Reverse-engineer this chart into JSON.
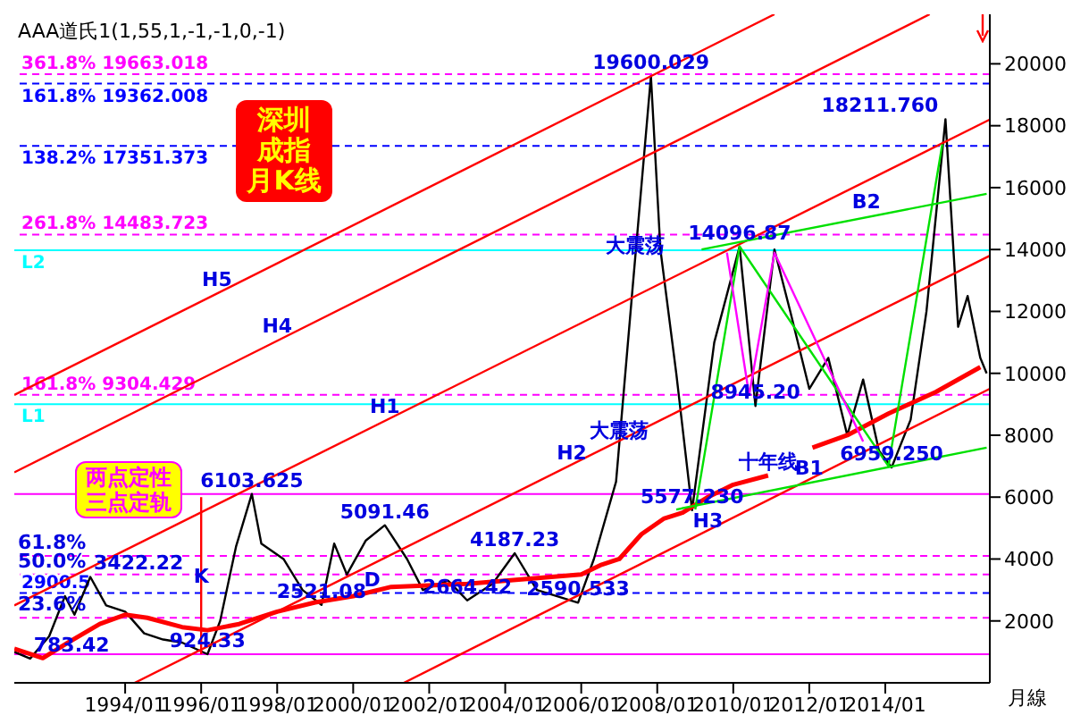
{
  "chart_data": {
    "type": "line",
    "title": "深圳成指月K线",
    "subtitle": "AAA道氏1(1,55,1,-1,-1,0,-1)",
    "xlabel": "月線",
    "xlim": [
      "1991-02",
      "2016-10"
    ],
    "xticks": [
      {
        "value": "1994-01",
        "label": "1994/01"
      },
      {
        "value": "1996-01",
        "label": "1996/01"
      },
      {
        "value": "1998-01",
        "label": "1998/01"
      },
      {
        "value": "2000-01",
        "label": "2000/01"
      },
      {
        "value": "2002-01",
        "label": "2002/01"
      },
      {
        "value": "2004-01",
        "label": "2004/01"
      },
      {
        "value": "2006-01",
        "label": "2006/01"
      },
      {
        "value": "2008-01",
        "label": "2008/01"
      },
      {
        "value": "2010-01",
        "label": "2010/01"
      },
      {
        "value": "2012-01",
        "label": "2012/01"
      },
      {
        "value": "2014-01",
        "label": "2014/01"
      }
    ],
    "ylim": [
      0,
      21600
    ],
    "yticks": [
      2000,
      4000,
      6000,
      8000,
      10000,
      12000,
      14000,
      16000,
      18000,
      20000
    ],
    "grid": false,
    "series": [
      {
        "color": "#000000",
        "x": [
          "1991-02",
          "1991-07",
          "1992-01",
          "1992-06",
          "1992-09",
          "1993-02",
          "1993-07",
          "1994-01",
          "1994-07",
          "1995-01",
          "1995-07",
          "1996-03",
          "1996-07",
          "1996-12",
          "1997-05",
          "1997-08",
          "1998-03",
          "1998-09",
          "1999-03",
          "1999-07",
          "1999-11",
          "2000-05",
          "2000-11",
          "2001-06",
          "2001-11",
          "2002-07",
          "2003-01",
          "2003-09",
          "2004-04",
          "2004-11",
          "2005-12",
          "2006-05",
          "2006-12",
          "2007-05",
          "2007-11",
          "2008-02",
          "2008-07",
          "2008-12",
          "2009-07",
          "2010-03",
          "2010-08",
          "2011-02",
          "2011-07",
          "2012-01",
          "2012-07",
          "2013-01",
          "2013-06",
          "2013-11",
          "2014-03",
          "2014-09",
          "2015-02",
          "2015-08",
          "2015-12",
          "2016-03",
          "2016-07",
          "2016-09"
        ],
        "values": [
          1000,
          783.42,
          1500,
          2800,
          2200,
          3422.22,
          2500,
          2300,
          1600,
          1400,
          1300,
          924.33,
          2000,
          4400,
          6103.625,
          4500,
          4000,
          3000,
          2521.08,
          4500,
          3500,
          4600,
          5091.46,
          4000,
          3000,
          3300,
          2664.42,
          3200,
          4187.23,
          3000,
          2590.533,
          4000,
          6500,
          12500,
          19600.029,
          14000,
          10000,
          5577.23,
          11000,
          14096.87,
          8945.2,
          14000,
          12000,
          9500,
          10500,
          8000,
          9800,
          7500,
          6959.25,
          8500,
          12000,
          18211.76,
          11500,
          12500,
          10500,
          10000
        ]
      },
      {
        "color": "#ff0000",
        "x": [
          "1991-02",
          "1991-11",
          "1992-07",
          "1993-05",
          "1994-01",
          "1994-08",
          "1995-07",
          "1996-03",
          "1997-01",
          "1998-01",
          "1999-01",
          "2000-01",
          "2001-01",
          "2003-01",
          "2005-01",
          "2006-01",
          "2006-07",
          "2007-01",
          "2007-08",
          "2008-03",
          "2008-09",
          "2009-05",
          "2010-01",
          "2010-12",
          "2011-07",
          "2012-02",
          "2013-01",
          "2014-02",
          "2015-05",
          "2016-07"
        ],
        "values": [
          1100,
          800,
          1300,
          1900,
          2200,
          2100,
          1800,
          1700,
          1900,
          2300,
          2600,
          2800,
          3100,
          3200,
          3400,
          3500,
          3800,
          4000,
          4800,
          5300,
          5500,
          6000,
          6400,
          6700,
          null,
          7600,
          8000,
          8700,
          9400,
          10200
        ]
      },
      {
        "color": "#ff0000",
        "x": [
          "1991-02",
          "2011-02"
        ],
        "values": [
          9300,
          21600
        ]
      },
      {
        "color": "#ff0000",
        "x": [
          "1991-02",
          "2015-03"
        ],
        "values": [
          6800,
          21600
        ]
      },
      {
        "color": "#ff0000",
        "x": [
          "1991-02",
          "2016-10"
        ],
        "values": [
          2500,
          18200
        ]
      },
      {
        "color": "#ff0000",
        "x": [
          "1994-04",
          "2016-10"
        ],
        "values": [
          0,
          13800
        ]
      },
      {
        "color": "#ff0000",
        "x": [
          "2001-05",
          "2016-10"
        ],
        "values": [
          0,
          9500
        ]
      },
      {
        "color": "#00e000",
        "x": [
          "2009-03",
          "2016-09"
        ],
        "values": [
          14000,
          15800
        ]
      },
      {
        "color": "#00e000",
        "x": [
          "2008-07",
          "2016-09"
        ],
        "values": [
          5600,
          7600
        ]
      },
      {
        "color": "#00e000",
        "x": [
          "2009-01",
          "2010-03",
          "2014-02",
          "2015-07"
        ],
        "values": [
          5600,
          14100,
          7000,
          17400
        ]
      },
      {
        "color": "#ff00ff",
        "x": [
          "2009-11",
          "2010-06",
          "2011-02",
          "2013-06"
        ],
        "values": [
          13900,
          9300,
          13900,
          7800
        ]
      },
      {
        "color": "#ff0000",
        "x": [
          "1996-01",
          "1996-01"
        ],
        "values": [
          924,
          6000
        ]
      }
    ],
    "ref_lines": [
      {
        "axis": "y",
        "value": 19663.018,
        "label": "361.8%  19663.018",
        "color": "#ff00ff",
        "line_style": "dashed"
      },
      {
        "axis": "y",
        "value": 19362.008,
        "label": "161.8%  19362.008",
        "color": "#0000ff",
        "line_style": "dashed"
      },
      {
        "axis": "y",
        "value": 14483.723,
        "label": "261.8%  14483.723",
        "color": "#ff00ff",
        "line_style": "dashed"
      },
      {
        "axis": "y",
        "value": 17351.373,
        "label": "138.2%  17351.373",
        "color": "#0000ff",
        "line_style": "dashed"
      },
      {
        "axis": "y",
        "value": 9304.429,
        "label": "161.8%  9304.429",
        "color": "#ff00ff",
        "line_style": "dashed"
      },
      {
        "axis": "y",
        "value": 13980,
        "label": "L2",
        "color": "#00ffff",
        "line_style": "solid"
      },
      {
        "axis": "y",
        "value": 4100,
        "label": null,
        "color": "#ff00ff",
        "line_style": "dashed"
      },
      {
        "axis": "y",
        "value": 9000,
        "label": "L1",
        "color": "#00ffff",
        "line_style": "solid"
      },
      {
        "axis": "y",
        "value": 3500,
        "label": null,
        "color": "#ff00ff",
        "line_style": "dashed"
      },
      {
        "axis": "y",
        "value": 6103.625,
        "label": null,
        "color": "#ff00ff",
        "line_style": "solid"
      },
      {
        "axis": "y",
        "value": 2100,
        "label": null,
        "color": "#ff00ff",
        "line_style": "dashed"
      },
      {
        "axis": "y",
        "value": 924.33,
        "label": null,
        "color": "#ff00ff",
        "line_style": "solid"
      },
      {
        "axis": "y",
        "value": 2900.5,
        "label": "2900.5",
        "color": "#0000ff",
        "line_style": "dashed"
      }
    ],
    "annotations": [
      "两点定性三点定轨",
      {
        "text": "61.8%",
        "x": "1991-02",
        "y": 4100
      },
      {
        "text": "50.0%",
        "x": "1991-02",
        "y": 3500
      },
      {
        "text": "23.6%",
        "x": "1991-02",
        "y": 2100
      },
      {
        "text": "783.42",
        "x": "1991-07",
        "y": 783.42
      },
      {
        "text": "3422.22",
        "x": "1993-02",
        "y": 3422.22
      },
      {
        "text": "924.33",
        "x": "1996-03",
        "y": 924.33
      },
      {
        "text": "6103.625",
        "x": "1997-05",
        "y": 6103.625
      },
      {
        "text": "2521.08",
        "x": "1999-03",
        "y": 2521.08
      },
      {
        "text": "5091.46",
        "x": "2000-11",
        "y": 5091.46
      },
      {
        "text": "2664.42",
        "x": "2003-01",
        "y": 2664.42
      },
      {
        "text": "4187.23",
        "x": "2004-04",
        "y": 4187.23
      },
      {
        "text": "2590.533",
        "x": "2005-12",
        "y": 2590.533
      },
      {
        "text": "19600.029",
        "x": "2007-11",
        "y": 19600.029
      },
      {
        "text": "5577.230",
        "x": "2008-12",
        "y": 5577.23
      },
      {
        "text": "14096.87",
        "x": "2010-03",
        "y": 14096.87
      },
      {
        "text": "8945.20",
        "x": "2010-08",
        "y": 8945.2
      },
      {
        "text": "6959.250",
        "x": "2014-03",
        "y": 6959.25
      },
      {
        "text": "18211.760",
        "x": "2015-08",
        "y": 18211.76
      },
      {
        "text": "H5",
        "x": "1996-06",
        "y": 12600
      },
      {
        "text": "H4",
        "x": "1998-01",
        "y": 11100
      },
      {
        "text": "H1",
        "x": "2000-11",
        "y": 8500
      },
      {
        "text": "H2",
        "x": "2005-10",
        "y": 7000
      },
      {
        "text": "H3",
        "x": "2009-05",
        "y": 4800
      },
      {
        "text": "B2",
        "x": "2013-07",
        "y": 15100
      },
      {
        "text": "B1",
        "x": "2012-01",
        "y": 6500
      },
      {
        "text": "十年线",
        "x": "2010-12",
        "y": 6700
      },
      {
        "text": "大震荡",
        "x": "2007-06",
        "y": 13700
      },
      {
        "text": "大震荡",
        "x": "2007-01",
        "y": 7700
      },
      {
        "text": "D",
        "x": "2000-07",
        "y": 2900.5
      },
      {
        "text": "K",
        "x": "1996-01",
        "y": 3000
      }
    ]
  }
}
